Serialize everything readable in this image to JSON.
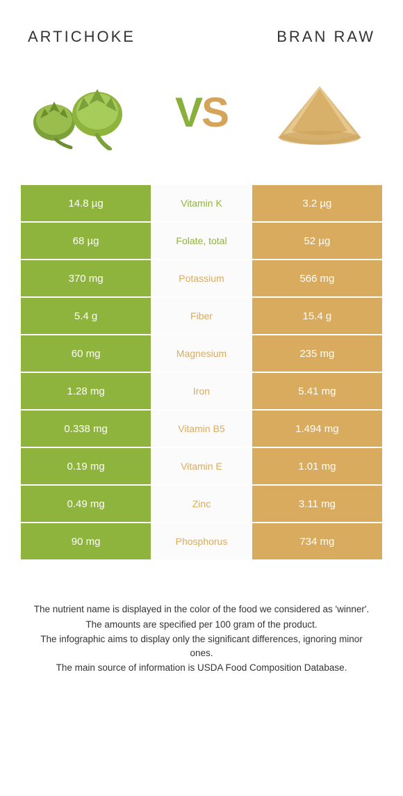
{
  "header": {
    "left": "Artichoke",
    "right": "Bran raw"
  },
  "vs": {
    "v_text": "V",
    "s_text": "S",
    "left_color": "#8ab03c",
    "right_color": "#d4a45a"
  },
  "colors": {
    "left_bg": "#8fb43d",
    "right_bg": "#d9ab5f",
    "mid_bg": "#fbfbfb",
    "row_border": "#ffffff",
    "left_text": "#8fb43d",
    "right_text": "#d9ab5f"
  },
  "rows": [
    {
      "left": "14.8 µg",
      "label": "Vitamin K",
      "right": "3.2 µg",
      "winner": "left"
    },
    {
      "left": "68 µg",
      "label": "Folate, total",
      "right": "52 µg",
      "winner": "left"
    },
    {
      "left": "370 mg",
      "label": "Potassium",
      "right": "566 mg",
      "winner": "right"
    },
    {
      "left": "5.4 g",
      "label": "Fiber",
      "right": "15.4 g",
      "winner": "right"
    },
    {
      "left": "60 mg",
      "label": "Magnesium",
      "right": "235 mg",
      "winner": "right"
    },
    {
      "left": "1.28 mg",
      "label": "Iron",
      "right": "5.41 mg",
      "winner": "right"
    },
    {
      "left": "0.338 mg",
      "label": "Vitamin B5",
      "right": "1.494 mg",
      "winner": "right"
    },
    {
      "left": "0.19 mg",
      "label": "Vitamin E",
      "right": "1.01 mg",
      "winner": "right"
    },
    {
      "left": "0.49 mg",
      "label": "Zinc",
      "right": "3.11 mg",
      "winner": "right"
    },
    {
      "left": "90 mg",
      "label": "Phosphorus",
      "right": "734 mg",
      "winner": "right"
    }
  ],
  "footer": {
    "line1": "The nutrient name is displayed in the color of the food we considered as 'winner'.",
    "line2": "The amounts are specified per 100 gram of the product.",
    "line3": "The infographic aims to display only the significant differences, ignoring minor ones.",
    "line4": "The main source of information is USDA Food Composition Database."
  }
}
